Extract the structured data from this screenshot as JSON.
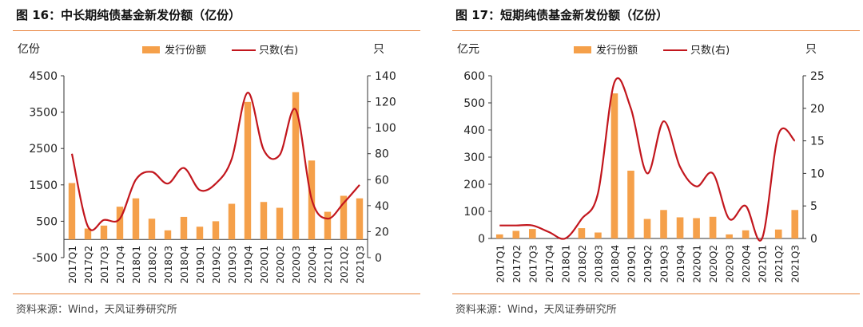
{
  "chart_data": [
    {
      "type": "bar+line",
      "title": "图 16：中长期纯债基金新发份额（亿份）",
      "source": "资料来源：Wind，天风证券研究所",
      "y_left_unit": "亿份",
      "y_right_unit": "只",
      "legend": {
        "bar": "发行份额",
        "line": "只数(右)"
      },
      "categories": [
        "2017Q1",
        "2017Q2",
        "2017Q3",
        "2017Q4",
        "2018Q1",
        "2018Q2",
        "2018Q3",
        "2018Q4",
        "2019Q1",
        "2019Q2",
        "2019Q3",
        "2019Q4",
        "2020Q1",
        "2020Q2",
        "2020Q3",
        "2020Q4",
        "2021Q1",
        "2021Q2",
        "2021Q3"
      ],
      "y_left_ticks": [
        "4500",
        "3500",
        "2500",
        "1500",
        "500",
        "-500"
      ],
      "y_left_range": [
        -500,
        4500
      ],
      "y_right_ticks": [
        "140",
        "120",
        "100",
        "80",
        "60",
        "40",
        "20",
        "0"
      ],
      "y_right_range": [
        0,
        140
      ],
      "series": [
        {
          "name": "发行份额",
          "axis": "left",
          "type": "bar",
          "values": [
            1550,
            300,
            380,
            900,
            1130,
            570,
            250,
            620,
            350,
            500,
            980,
            3780,
            1030,
            870,
            4050,
            2170,
            760,
            1200,
            1130
          ]
        },
        {
          "name": "只数(右)",
          "axis": "right",
          "type": "line",
          "values": [
            80,
            24,
            29,
            30,
            60,
            66,
            57,
            69,
            52,
            57,
            76,
            127,
            83,
            79,
            114,
            45,
            30,
            42,
            56
          ]
        }
      ],
      "colors": {
        "bar": "#f5a04a",
        "line": "#c2161d"
      }
    },
    {
      "type": "bar+line",
      "title": "图 17：短期纯债基金新发份额（亿份）",
      "source": "资料来源：Wind，天风证券研究所",
      "y_left_unit": "亿元",
      "y_right_unit": "只",
      "legend": {
        "bar": "发行份额",
        "line": "只数(右)"
      },
      "categories": [
        "2017Q1",
        "2017Q2",
        "2017Q3",
        "2017Q4",
        "2018Q1",
        "2018Q2",
        "2018Q3",
        "2018Q4",
        "2019Q1",
        "2019Q2",
        "2019Q3",
        "2019Q4",
        "2020Q1",
        "2020Q2",
        "2020Q3",
        "2020Q4",
        "2021Q1",
        "2021Q2",
        "2021Q3"
      ],
      "y_left_ticks": [
        "600",
        "500",
        "400",
        "300",
        "200",
        "100",
        "0"
      ],
      "y_left_range": [
        0,
        600
      ],
      "y_right_ticks": [
        "25",
        "20",
        "15",
        "10",
        "5",
        "0"
      ],
      "y_right_range": [
        0,
        25
      ],
      "series": [
        {
          "name": "发行份额",
          "axis": "left",
          "type": "bar",
          "values": [
            15,
            28,
            35,
            0,
            0,
            38,
            22,
            535,
            250,
            72,
            105,
            78,
            75,
            80,
            15,
            30,
            0,
            33,
            105
          ]
        },
        {
          "name": "只数(右)",
          "axis": "right",
          "type": "line",
          "values": [
            2,
            2,
            2,
            1,
            0,
            3,
            7,
            24,
            20,
            10,
            18,
            11,
            8,
            10,
            3,
            5,
            0,
            16,
            15
          ]
        }
      ],
      "colors": {
        "bar": "#f5a04a",
        "line": "#c2161d"
      }
    }
  ]
}
